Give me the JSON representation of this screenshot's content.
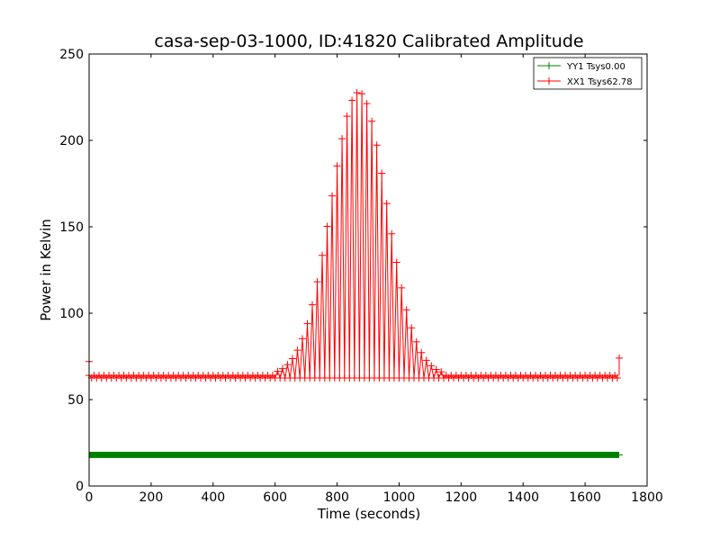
{
  "chart_data": {
    "type": "line",
    "title": "casa-sep-03-1000, ID:41820 Calibrated Amplitude",
    "xlabel": "Time (seconds)",
    "ylabel": "Power in Kelvin",
    "xlim": [
      0,
      1800
    ],
    "ylim": [
      0,
      250
    ],
    "xticks": [
      "0",
      "200",
      "400",
      "600",
      "800",
      "1000",
      "1200",
      "1400",
      "1600",
      "1800"
    ],
    "yticks": [
      "0",
      "50",
      "100",
      "150",
      "200",
      "250"
    ],
    "grid": false,
    "legend": "top-right",
    "series": [
      {
        "name": "YY1 Tsys0.00",
        "color": "#008000",
        "marker": "+",
        "baseline": 18,
        "x_end": 1710,
        "values_note_free": true
      },
      {
        "name": "XX1 Tsys62.78",
        "color": "#ff0000",
        "marker": "+",
        "baseline": 64,
        "x_end": 1710,
        "peak_x": 870,
        "peak_value": 228,
        "peak_start_x": 600,
        "peak_end_x": 1150
      }
    ]
  }
}
